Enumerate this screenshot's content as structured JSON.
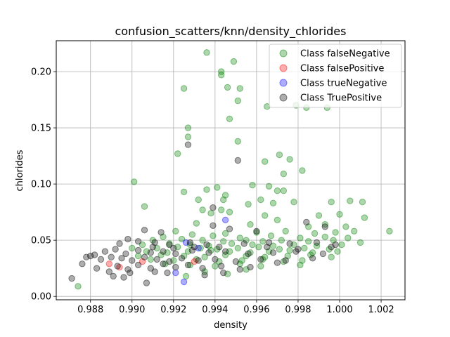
{
  "chart_data": {
    "type": "scatter",
    "title": "confusion_scatters/knn/density_chlorides",
    "xlabel": "density",
    "ylabel": "chlorides",
    "xlim": [
      0.98635,
      1.00315
    ],
    "ylim": [
      -0.003,
      0.2275
    ],
    "x_ticks": [
      0.988,
      0.99,
      0.992,
      0.994,
      0.996,
      0.998,
      1.0,
      1.002
    ],
    "x_tick_labels": [
      "0.988",
      "0.990",
      "0.992",
      "0.994",
      "0.996",
      "0.998",
      "1.000",
      "1.002"
    ],
    "y_ticks": [
      0.0,
      0.05,
      0.1,
      0.15,
      0.2
    ],
    "y_tick_labels": [
      "0.00",
      "0.05",
      "0.10",
      "0.15",
      "0.20"
    ],
    "grid": true,
    "legend_position": "top-right",
    "series": [
      {
        "name": "Class falseNegative",
        "color": "#008000",
        "points": [
          [
            0.9936,
            0.217
          ],
          [
            0.9943,
            0.2
          ],
          [
            0.9943,
            0.197
          ],
          [
            0.9949,
            0.209
          ],
          [
            0.9946,
            0.186
          ],
          [
            0.9925,
            0.185
          ],
          [
            0.9952,
            0.185
          ],
          [
            0.9951,
            0.174
          ],
          [
            0.9965,
            0.169
          ],
          [
            0.9979,
            0.17
          ],
          [
            0.9984,
            0.168
          ],
          [
            0.9994,
            0.168
          ],
          [
            0.9947,
            0.158
          ],
          [
            0.9927,
            0.15
          ],
          [
            0.9927,
            0.142
          ],
          [
            0.9951,
            0.138
          ],
          [
            0.9922,
            0.127
          ],
          [
            0.9971,
            0.126
          ],
          [
            0.9964,
            0.12
          ],
          [
            0.9976,
            0.122
          ],
          [
            0.9982,
            0.112
          ],
          [
            0.9973,
            0.109
          ],
          [
            0.9901,
            0.102
          ],
          [
            0.9958,
            0.099
          ],
          [
            0.9941,
            0.097
          ],
          [
            0.9936,
            0.095
          ],
          [
            0.9966,
            0.098
          ],
          [
            0.9925,
            0.093
          ],
          [
            0.997,
            0.094
          ],
          [
            0.9973,
            0.094
          ],
          [
            0.9945,
            0.09
          ],
          [
            0.9944,
            0.086
          ],
          [
            0.9932,
            0.086
          ],
          [
            0.9962,
            0.086
          ],
          [
            0.9996,
            0.084
          ],
          [
            1.0005,
            0.085
          ],
          [
            1.0011,
            0.084
          ],
          [
            0.9978,
            0.084
          ],
          [
            0.9968,
            0.083
          ],
          [
            0.9956,
            0.082
          ],
          [
            0.9906,
            0.08
          ],
          [
            0.9934,
            0.077
          ],
          [
            0.9943,
            0.077
          ],
          [
            0.9947,
            0.075
          ],
          [
            0.9938,
            0.074
          ],
          [
            0.9964,
            0.072
          ],
          [
            0.999,
            0.072
          ],
          [
            1.0,
            0.073
          ],
          [
            1.0012,
            0.07
          ],
          [
            1.0024,
            0.058
          ],
          [
            0.997,
            0.068
          ],
          [
            0.9931,
            0.065
          ],
          [
            0.9957,
            0.064
          ],
          [
            0.9985,
            0.062
          ],
          [
            0.9993,
            0.064
          ],
          [
            1.0003,
            0.062
          ],
          [
            0.9921,
            0.058
          ],
          [
            0.9945,
            0.056
          ],
          [
            0.996,
            0.057
          ],
          [
            0.9974,
            0.058
          ],
          [
            0.9988,
            0.056
          ],
          [
            0.9998,
            0.057
          ],
          [
            1.0007,
            0.058
          ],
          [
            0.9915,
            0.053
          ],
          [
            0.9929,
            0.055
          ],
          [
            0.9939,
            0.054
          ],
          [
            0.9952,
            0.052
          ],
          [
            0.9967,
            0.054
          ],
          [
            0.9981,
            0.052
          ],
          [
            0.9993,
            0.053
          ],
          [
            1.0004,
            0.052
          ],
          [
            0.991,
            0.05
          ],
          [
            0.9924,
            0.051
          ],
          [
            0.9934,
            0.05
          ],
          [
            0.9944,
            0.049
          ],
          [
            0.9955,
            0.05
          ],
          [
            0.9963,
            0.049
          ],
          [
            0.9972,
            0.05
          ],
          [
            0.9985,
            0.049
          ],
          [
            0.9997,
            0.05
          ],
          [
            1.001,
            0.048
          ],
          [
            0.9905,
            0.046
          ],
          [
            0.9918,
            0.047
          ],
          [
            0.9928,
            0.046
          ],
          [
            0.9937,
            0.045
          ],
          [
            0.9948,
            0.047
          ],
          [
            0.9958,
            0.046
          ],
          [
            0.9968,
            0.045
          ],
          [
            0.9978,
            0.046
          ],
          [
            0.9989,
            0.045
          ],
          [
            1.0001,
            0.046
          ],
          [
            0.99,
            0.043
          ],
          [
            0.9912,
            0.043
          ],
          [
            0.9922,
            0.044
          ],
          [
            0.9933,
            0.043
          ],
          [
            0.9941,
            0.042
          ],
          [
            0.9951,
            0.043
          ],
          [
            0.9961,
            0.044
          ],
          [
            0.9971,
            0.042
          ],
          [
            0.9983,
            0.043
          ],
          [
            0.9995,
            0.042
          ],
          [
            0.9907,
            0.04
          ],
          [
            0.9917,
            0.039
          ],
          [
            0.9927,
            0.04
          ],
          [
            0.9938,
            0.041
          ],
          [
            0.9947,
            0.04
          ],
          [
            0.9957,
            0.039
          ],
          [
            0.9966,
            0.04
          ],
          [
            0.9976,
            0.041
          ],
          [
            0.9987,
            0.039
          ],
          [
            0.9999,
            0.04
          ],
          [
            0.9903,
            0.036
          ],
          [
            0.9914,
            0.037
          ],
          [
            0.9925,
            0.036
          ],
          [
            0.9935,
            0.035
          ],
          [
            0.9945,
            0.037
          ],
          [
            0.9955,
            0.036
          ],
          [
            0.9964,
            0.035
          ],
          [
            0.9975,
            0.036
          ],
          [
            0.9986,
            0.037
          ],
          [
            0.9996,
            0.035
          ],
          [
            0.9909,
            0.033
          ],
          [
            0.992,
            0.032
          ],
          [
            0.9931,
            0.033
          ],
          [
            0.9942,
            0.031
          ],
          [
            0.9953,
            0.032
          ],
          [
            0.9963,
            0.033
          ],
          [
            0.9973,
            0.031
          ],
          [
            0.9982,
            0.032
          ],
          [
            0.9916,
            0.029
          ],
          [
            0.9928,
            0.028
          ],
          [
            0.994,
            0.027
          ],
          [
            0.9952,
            0.029
          ],
          [
            0.9962,
            0.027
          ],
          [
            0.9981,
            0.028
          ],
          [
            0.9874,
            0.009
          ],
          [
            0.9955,
            0.024
          ],
          [
            0.9935,
            0.022
          ],
          [
            0.9946,
            0.02
          ],
          [
            0.9926,
            0.018
          ]
        ]
      },
      {
        "name": "Class falsePositive",
        "color": "#ff0000",
        "points": [
          [
            0.9889,
            0.029
          ],
          [
            0.9894,
            0.026
          ],
          [
            0.9905,
            0.031
          ],
          [
            0.993,
            0.031
          ]
        ]
      },
      {
        "name": "Class trueNegative",
        "color": "#0000ff",
        "points": [
          [
            0.9945,
            0.068
          ],
          [
            0.9925,
            0.013
          ],
          [
            0.9921,
            0.021
          ],
          [
            0.9926,
            0.048
          ],
          [
            0.9932,
            0.043
          ]
        ]
      },
      {
        "name": "Class TruePositive",
        "color": "#000000",
        "points": [
          [
            0.9927,
            0.135
          ],
          [
            0.9951,
            0.121
          ],
          [
            0.9939,
            0.079
          ],
          [
            0.9939,
            0.063
          ],
          [
            0.9906,
            0.059
          ],
          [
            0.9914,
            0.057
          ],
          [
            0.9984,
            0.066
          ],
          [
            0.9993,
            0.062
          ],
          [
            0.9947,
            0.06
          ],
          [
            0.996,
            0.058
          ],
          [
            0.9898,
            0.051
          ],
          [
            0.9894,
            0.047
          ],
          [
            0.9903,
            0.049
          ],
          [
            0.9911,
            0.048
          ],
          [
            0.9918,
            0.046
          ],
          [
            0.9928,
            0.048
          ],
          [
            0.9936,
            0.046
          ],
          [
            0.9954,
            0.047
          ],
          [
            0.9966,
            0.048
          ],
          [
            0.9976,
            0.047
          ],
          [
            0.9989,
            0.048
          ],
          [
            0.9998,
            0.046
          ],
          [
            0.9887,
            0.04
          ],
          [
            0.9892,
            0.042
          ],
          [
            0.9897,
            0.038
          ],
          [
            0.9903,
            0.041
          ],
          [
            0.9909,
            0.039
          ],
          [
            0.9915,
            0.04
          ],
          [
            0.9921,
            0.038
          ],
          [
            0.9929,
            0.041
          ],
          [
            0.9937,
            0.039
          ],
          [
            0.9945,
            0.04
          ],
          [
            0.9956,
            0.038
          ],
          [
            0.9968,
            0.039
          ],
          [
            0.9979,
            0.04
          ],
          [
            0.9992,
            0.038
          ],
          [
            0.988,
            0.036
          ],
          [
            0.9885,
            0.033
          ],
          [
            0.989,
            0.035
          ],
          [
            0.9895,
            0.034
          ],
          [
            0.99,
            0.032
          ],
          [
            0.9906,
            0.035
          ],
          [
            0.9912,
            0.033
          ],
          [
            0.9918,
            0.031
          ],
          [
            0.9924,
            0.034
          ],
          [
            0.9932,
            0.032
          ],
          [
            0.994,
            0.033
          ],
          [
            0.995,
            0.031
          ],
          [
            0.9962,
            0.033
          ],
          [
            0.9974,
            0.032
          ],
          [
            0.9987,
            0.034
          ],
          [
            0.9876,
            0.029
          ],
          [
            0.9883,
            0.025
          ],
          [
            0.9889,
            0.022
          ],
          [
            0.9893,
            0.027
          ],
          [
            0.9898,
            0.024
          ],
          [
            0.9903,
            0.028
          ],
          [
            0.9909,
            0.025
          ],
          [
            0.9915,
            0.029
          ],
          [
            0.9921,
            0.026
          ],
          [
            0.9927,
            0.028
          ],
          [
            0.9934,
            0.025
          ],
          [
            0.9943,
            0.027
          ],
          [
            0.9952,
            0.024
          ],
          [
            0.9871,
            0.016
          ],
          [
            0.9878,
            0.035
          ],
          [
            0.9882,
            0.037
          ],
          [
            0.9891,
            0.018
          ],
          [
            0.9896,
            0.017
          ],
          [
            0.9899,
            0.021
          ],
          [
            0.9907,
            0.012
          ],
          [
            0.9911,
            0.022
          ],
          [
            0.9917,
            0.021
          ],
          [
            0.9935,
            0.019
          ],
          [
            0.9944,
            0.021
          ],
          [
            0.9957,
            0.026
          ],
          [
            0.997,
            0.03
          ],
          [
            0.9996,
            0.044
          ],
          [
            0.998,
            0.042
          ],
          [
            0.9965,
            0.044
          ],
          [
            0.991,
            0.044
          ],
          [
            0.992,
            0.043
          ],
          [
            0.993,
            0.044
          ],
          [
            0.9942,
            0.044
          ]
        ]
      }
    ]
  }
}
